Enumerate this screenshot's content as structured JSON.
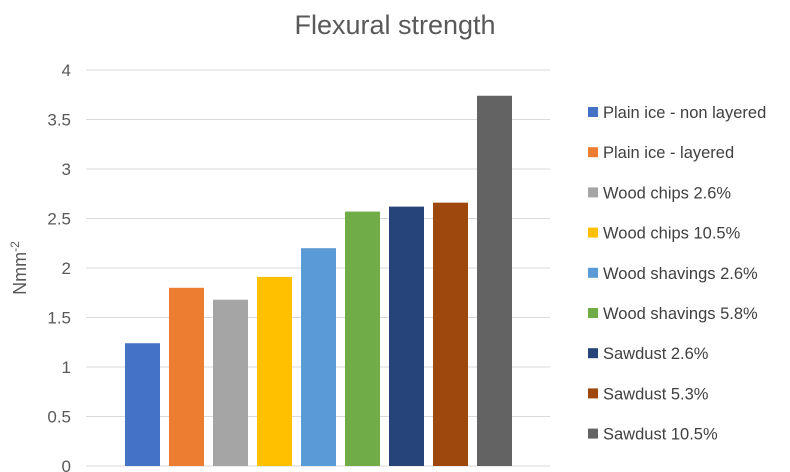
{
  "chart_data": {
    "type": "bar",
    "title": "Flexural strength",
    "xlabel": "",
    "ylabel_base": "Nmm",
    "ylabel_sup": "-2",
    "ylim": [
      0,
      4
    ],
    "yticks": [
      0,
      0.5,
      1,
      1.5,
      2,
      2.5,
      3,
      3.5,
      4
    ],
    "grid": true,
    "legend_position": "right",
    "series": [
      {
        "name": "Plain ice - non layered",
        "value": 1.24,
        "color": "#4472c4"
      },
      {
        "name": "Plain ice - layered",
        "value": 1.8,
        "color": "#ed7d31"
      },
      {
        "name": "Wood chips 2.6%",
        "value": 1.68,
        "color": "#a5a5a5"
      },
      {
        "name": "Wood chips 10.5%",
        "value": 1.91,
        "color": "#ffc000"
      },
      {
        "name": "Wood shavings 2.6%",
        "value": 2.2,
        "color": "#5b9bd5"
      },
      {
        "name": "Wood shavings 5.8%",
        "value": 2.57,
        "color": "#70ad47"
      },
      {
        "name": "Sawdust 2.6%",
        "value": 2.62,
        "color": "#264478"
      },
      {
        "name": "Sawdust 5.3%",
        "value": 2.66,
        "color": "#9e480e"
      },
      {
        "name": "Sawdust 10.5%",
        "value": 3.74,
        "color": "#636363"
      }
    ]
  }
}
